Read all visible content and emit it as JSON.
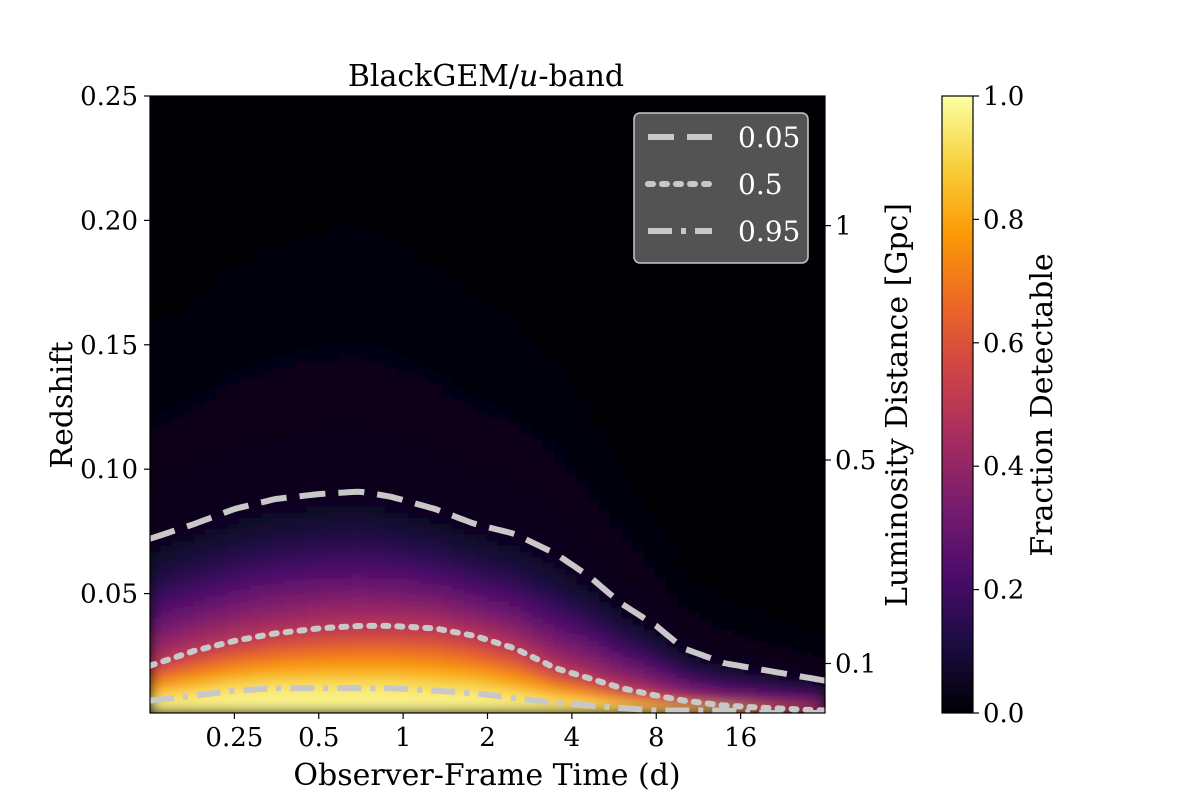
{
  "chart_data": {
    "type": "heatmap",
    "title": "BlackGEM/u-band",
    "title_parts": {
      "prefix": "BlackGEM/",
      "italic": "u",
      "suffix": "-band"
    },
    "xlabel": "Observer-Frame Time (d)",
    "ylabel": "Redshift",
    "ylabel_right": "Luminosity Distance [Gpc]",
    "colorbar_label": "Fraction Detectable",
    "x_scale": "log2",
    "xlim": [
      0.125,
      32
    ],
    "ylim": [
      0.002,
      0.25
    ],
    "x_ticks": [
      0.25,
      0.5,
      1,
      2,
      4,
      8,
      16
    ],
    "x_tick_labels": [
      "0.25",
      "0.5",
      "1",
      "2",
      "4",
      "8",
      "16"
    ],
    "y_ticks": [
      0.05,
      0.1,
      0.15,
      0.2,
      0.25
    ],
    "y_tick_labels": [
      "0.05",
      "0.10",
      "0.15",
      "0.20",
      "0.25"
    ],
    "right_ticks": [
      {
        "label": "0.1",
        "z": 0.0219
      },
      {
        "label": "0.5",
        "z": 0.1037
      },
      {
        "label": "1",
        "z": 0.1979
      }
    ],
    "colorbar_range": [
      0.0,
      1.0
    ],
    "colorbar_ticks": [
      0.0,
      0.2,
      0.4,
      0.6,
      0.8,
      1.0
    ],
    "colorbar_tick_labels": [
      "0.0",
      "0.2",
      "0.4",
      "0.6",
      "0.8",
      "1.0"
    ],
    "colormap": [
      "#000004",
      "#1b0c41",
      "#4a0c6b",
      "#781c6d",
      "#a52c60",
      "#cf4446",
      "#ed6925",
      "#fb9b06",
      "#f7d13d",
      "#fcffa4"
    ],
    "contours": [
      {
        "name": "0.05",
        "style": "dashed",
        "color": "#c8c8c8",
        "x": [
          0.125,
          0.18,
          0.25,
          0.35,
          0.5,
          0.7,
          0.9,
          1.3,
          1.8,
          2.5,
          3.5,
          4.6,
          6,
          8,
          10,
          14,
          20,
          32
        ],
        "y": [
          0.072,
          0.078,
          0.084,
          0.088,
          0.09,
          0.091,
          0.089,
          0.084,
          0.078,
          0.074,
          0.066,
          0.057,
          0.046,
          0.037,
          0.028,
          0.022,
          0.019,
          0.015
        ]
      },
      {
        "name": "0.5",
        "style": "dotted",
        "color": "#c8c8c8",
        "x": [
          0.125,
          0.18,
          0.25,
          0.35,
          0.5,
          0.7,
          0.9,
          1.3,
          1.8,
          2.5,
          3.5,
          4.6,
          6,
          8,
          10,
          14,
          20,
          32
        ],
        "y": [
          0.021,
          0.027,
          0.031,
          0.034,
          0.036,
          0.037,
          0.037,
          0.036,
          0.033,
          0.028,
          0.02,
          0.016,
          0.012,
          0.009,
          0.007,
          0.005,
          0.004,
          0.003
        ]
      },
      {
        "name": "0.95",
        "style": "dashdot",
        "color": "#c8c8c8",
        "x": [
          0.125,
          0.18,
          0.25,
          0.35,
          0.5,
          0.7,
          0.9,
          1.3,
          1.8,
          2.5,
          3.5,
          4.6,
          6,
          8,
          10,
          14,
          20,
          32
        ],
        "y": [
          0.007,
          0.009,
          0.011,
          0.012,
          0.012,
          0.012,
          0.012,
          0.011,
          0.01,
          0.008,
          0.006,
          0.005,
          0.004,
          0.003,
          0.003,
          0.003,
          0.002,
          0.002
        ]
      }
    ],
    "legend": {
      "placement": "top-right",
      "entries": [
        {
          "label": "0.05",
          "style": "dashed"
        },
        {
          "label": "0.5",
          "style": "dotted"
        },
        {
          "label": "0.95",
          "style": "dashdot"
        }
      ]
    }
  }
}
